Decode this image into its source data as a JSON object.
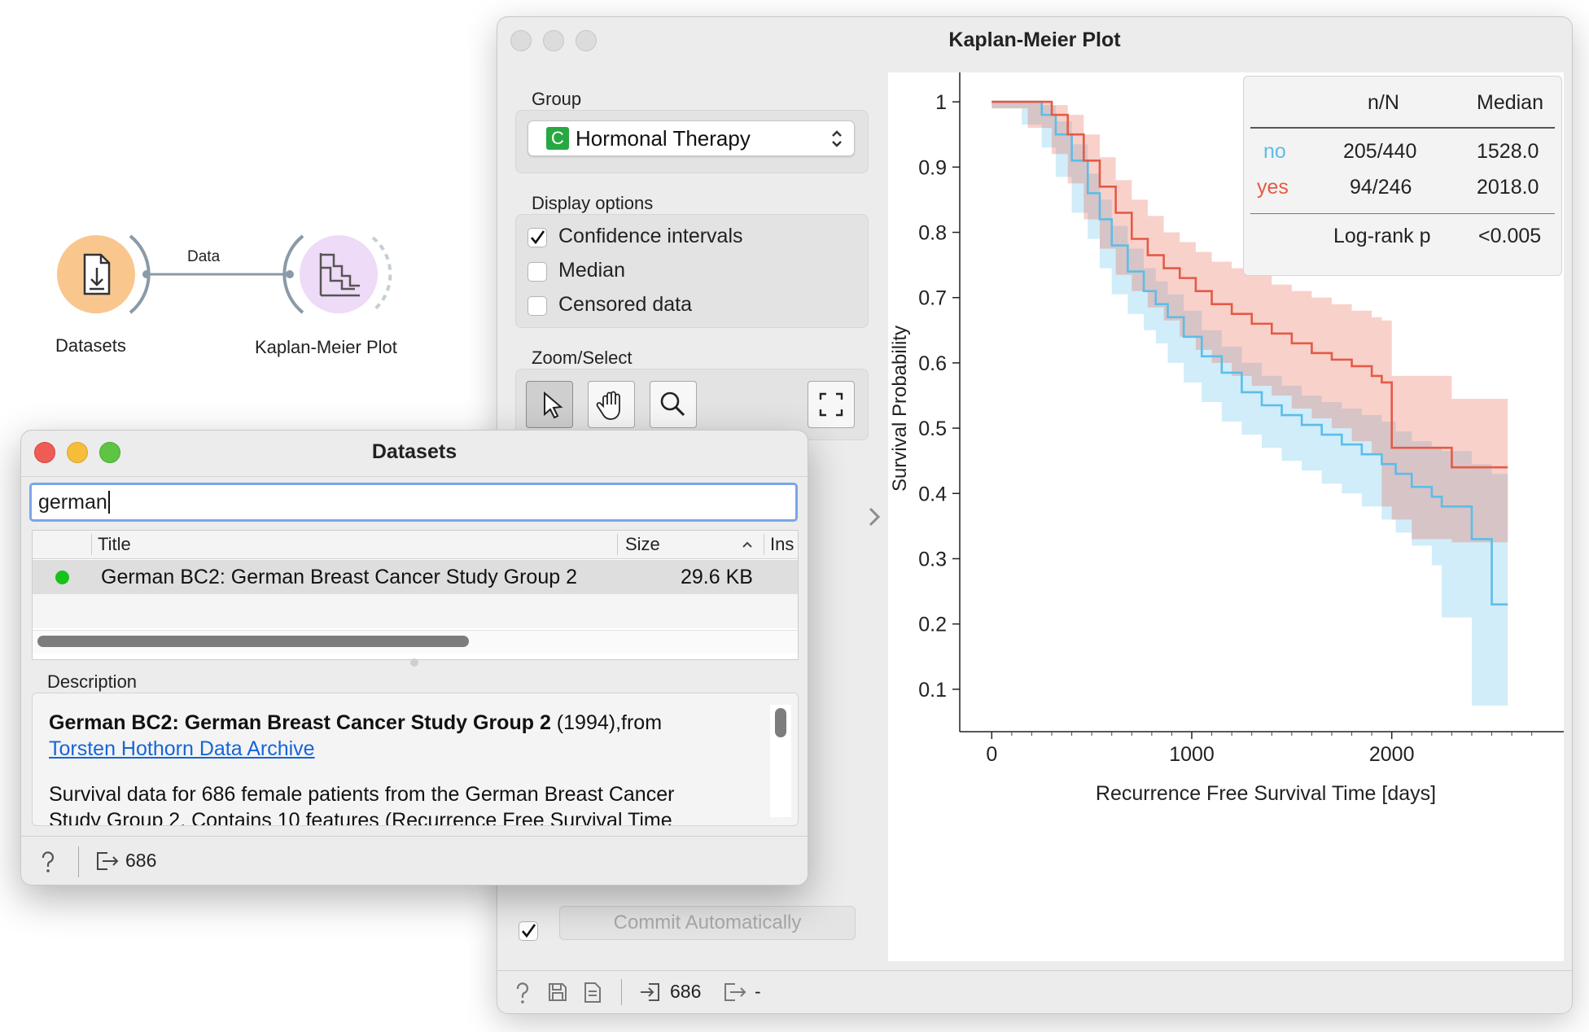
{
  "canvas": {
    "link_label": "Data",
    "widgets": [
      {
        "label": "Datasets"
      },
      {
        "label": "Kaplan-Meier Plot"
      }
    ]
  },
  "km_window": {
    "title": "Kaplan-Meier Plot",
    "group_label": "Group",
    "group_value": "Hormonal Therapy",
    "group_badge": "C",
    "display_options_label": "Display options",
    "options": [
      {
        "label": "Confidence intervals",
        "checked": true
      },
      {
        "label": "Median",
        "checked": false
      },
      {
        "label": "Censored data",
        "checked": false
      }
    ],
    "zoom_label": "Zoom/Select",
    "zoom_tools": [
      "select-arrow-icon",
      "pan-hand-icon",
      "zoom-magnifier-icon",
      "fit-view-icon"
    ],
    "commit_label": "Commit Automatically",
    "commit_checked": true,
    "status": {
      "input_count": "686",
      "output_count": "-"
    }
  },
  "legend": {
    "header_n": "n/N",
    "header_median": "Median",
    "rows": [
      {
        "group": "no",
        "n": "205/440",
        "median": "1528.0",
        "color": "#5bbde8"
      },
      {
        "group": "yes",
        "n": "94/246",
        "median": "2018.0",
        "color": "#e55a45"
      }
    ],
    "logrank_label": "Log-rank p",
    "logrank_value": "<0.005"
  },
  "chart_data": {
    "type": "line",
    "xlabel": "Recurrence Free Survival Time [days]",
    "ylabel": "Survival Probability",
    "xlim": [
      -160,
      2860
    ],
    "ylim": [
      0.035,
      1.045
    ],
    "xticks": [
      0,
      1000,
      2000
    ],
    "yticks": [
      0.1,
      0.2,
      0.3,
      0.4,
      0.5,
      0.6,
      0.7,
      0.8,
      0.9,
      1
    ],
    "confidence_intervals": true,
    "series": [
      {
        "name": "no",
        "color": "#5bbde8",
        "x": [
          0,
          150,
          250,
          320,
          400,
          480,
          540,
          600,
          680,
          760,
          820,
          880,
          960,
          1050,
          1150,
          1250,
          1350,
          1450,
          1550,
          1650,
          1750,
          1850,
          1950,
          2020,
          2100,
          2200,
          2250,
          2400,
          2500,
          2580
        ],
        "y": [
          1.0,
          1.0,
          0.98,
          0.95,
          0.91,
          0.86,
          0.82,
          0.78,
          0.74,
          0.71,
          0.69,
          0.67,
          0.64,
          0.61,
          0.585,
          0.555,
          0.535,
          0.52,
          0.505,
          0.49,
          0.475,
          0.46,
          0.445,
          0.43,
          0.41,
          0.395,
          0.38,
          0.33,
          0.23,
          0.23
        ],
        "lower": [
          1.0,
          0.99,
          0.965,
          0.93,
          0.885,
          0.83,
          0.79,
          0.745,
          0.705,
          0.675,
          0.65,
          0.63,
          0.6,
          0.57,
          0.54,
          0.51,
          0.49,
          0.47,
          0.45,
          0.435,
          0.415,
          0.4,
          0.38,
          0.36,
          0.34,
          0.32,
          0.29,
          0.21,
          0.075,
          0.075
        ],
        "upper": [
          1.0,
          1.0,
          0.995,
          0.97,
          0.935,
          0.89,
          0.85,
          0.81,
          0.775,
          0.745,
          0.725,
          0.705,
          0.68,
          0.65,
          0.625,
          0.6,
          0.58,
          0.565,
          0.55,
          0.54,
          0.53,
          0.52,
          0.51,
          0.495,
          0.48,
          0.47,
          0.465,
          0.445,
          0.43,
          0.43
        ]
      },
      {
        "name": "yes",
        "color": "#e55a45",
        "x": [
          0,
          180,
          300,
          380,
          460,
          540,
          620,
          700,
          780,
          860,
          940,
          1020,
          1100,
          1200,
          1300,
          1400,
          1500,
          1600,
          1700,
          1800,
          1900,
          1950,
          2000,
          2100,
          2300,
          2400,
          2500,
          2580
        ],
        "y": [
          1.0,
          1.0,
          0.98,
          0.95,
          0.91,
          0.87,
          0.83,
          0.79,
          0.765,
          0.745,
          0.73,
          0.71,
          0.69,
          0.675,
          0.66,
          0.645,
          0.63,
          0.615,
          0.605,
          0.595,
          0.58,
          0.57,
          0.47,
          0.47,
          0.44,
          0.44,
          0.44,
          0.44
        ],
        "lower": [
          1.0,
          0.99,
          0.96,
          0.92,
          0.875,
          0.82,
          0.775,
          0.735,
          0.71,
          0.685,
          0.665,
          0.64,
          0.62,
          0.6,
          0.58,
          0.565,
          0.55,
          0.53,
          0.515,
          0.5,
          0.48,
          0.46,
          0.38,
          0.36,
          0.33,
          0.325,
          0.325,
          0.325
        ],
        "upper": [
          1.0,
          1.0,
          0.995,
          0.98,
          0.95,
          0.915,
          0.88,
          0.85,
          0.825,
          0.8,
          0.785,
          0.77,
          0.755,
          0.745,
          0.735,
          0.72,
          0.71,
          0.7,
          0.69,
          0.68,
          0.67,
          0.665,
          0.58,
          0.58,
          0.545,
          0.545,
          0.545,
          0.545
        ]
      }
    ]
  },
  "datasets_window": {
    "title": "Datasets",
    "search_value": "german",
    "columns": [
      "Title",
      "Size",
      "Ins"
    ],
    "rows": [
      {
        "title": "German BC2: German Breast Cancer Study Group 2",
        "size": "29.6 KB",
        "status_color": "#18c21b"
      }
    ],
    "description_label": "Description",
    "description_title": "German BC2: German Breast Cancer Study Group 2",
    "description_year": " (1994),from",
    "description_link": "Torsten Hothorn Data Archive",
    "description_body": "Survival data for 686 female patients from the German Breast Cancer",
    "description_body2": "Study Group 2. Contains 10 features (Recurrence Free Survival Time",
    "status_count": "686"
  }
}
